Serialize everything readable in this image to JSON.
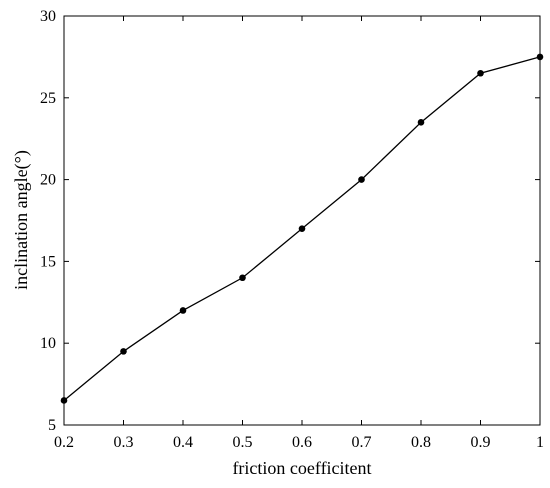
{
  "chart_data": {
    "type": "line",
    "x": [
      0.2,
      0.3,
      0.4,
      0.5,
      0.6,
      0.7,
      0.8,
      0.9,
      1.0
    ],
    "series": [
      {
        "values": [
          6.5,
          9.5,
          12,
          14,
          17,
          20,
          23.5,
          26.5,
          27.5
        ]
      }
    ],
    "xlabel": "friction coefficitent",
    "ylabel": "inclination angle(°)",
    "xlim": [
      0.2,
      1.0
    ],
    "ylim": [
      5,
      30
    ],
    "xticks": [
      "0.2",
      "0.3",
      "0.4",
      "0.5",
      "0.6",
      "0.7",
      "0.8",
      "0.9",
      "1"
    ],
    "xtick_values": [
      0.2,
      0.3,
      0.4,
      0.5,
      0.6,
      0.7,
      0.8,
      0.9,
      1.0
    ],
    "yticks": [
      "5",
      "10",
      "15",
      "20",
      "25",
      "30"
    ],
    "ytick_values": [
      5,
      10,
      15,
      20,
      25,
      30
    ],
    "grid": false,
    "line_color": "#000000",
    "marker": "filled-circle"
  }
}
